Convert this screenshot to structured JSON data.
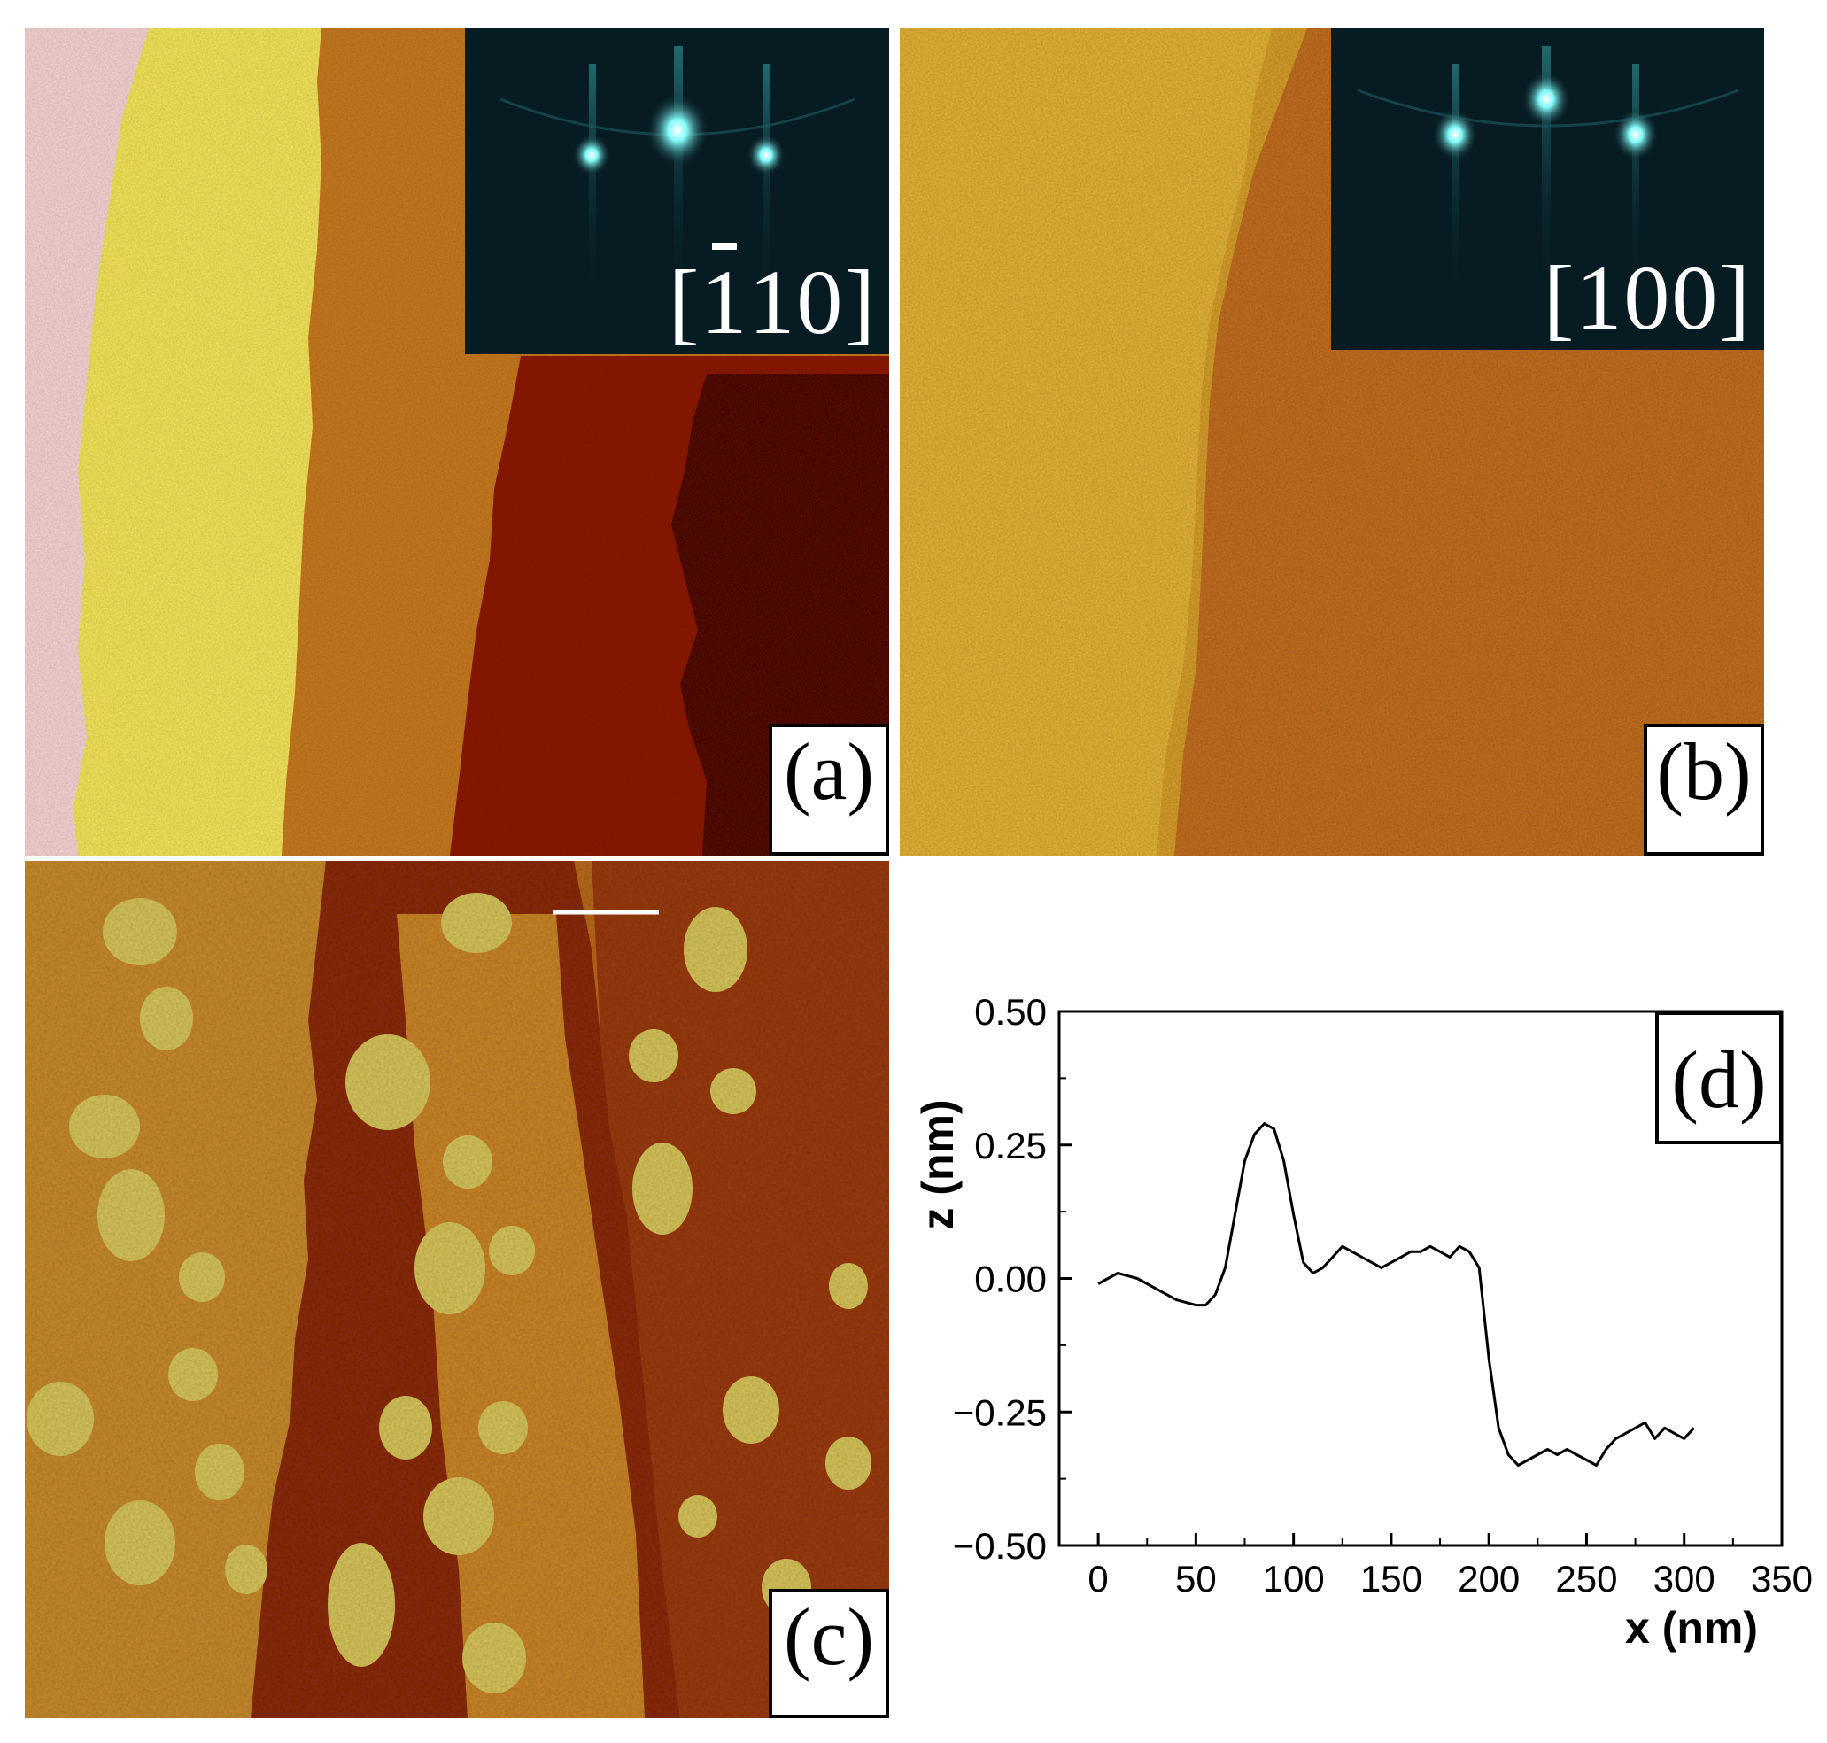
{
  "figure": {
    "panels": [
      {
        "id": "a",
        "label": "(a)",
        "inset_direction": "[110]",
        "inset_overbar_digit": "1"
      },
      {
        "id": "b",
        "label": "(b)",
        "inset_direction": "[100]"
      },
      {
        "id": "c",
        "label": "(c)"
      },
      {
        "id": "d",
        "label": "(d)"
      }
    ],
    "colors": {
      "afm_light": "#f5e85a",
      "afm_mid": "#c87a1a",
      "afm_dark": "#7a0f00",
      "afm_darkest": "#4a0500",
      "substrate_edge": "#f9d5d5",
      "rheed_spot": "#5cf0f0",
      "rheed_background": "#04141a"
    }
  },
  "chart_data": {
    "type": "line",
    "panel": "(d)",
    "xlabel": "x (nm)",
    "ylabel": "z (nm)",
    "xlim": [
      -20,
      350
    ],
    "ylim": [
      -0.5,
      0.5
    ],
    "xticks": [
      0,
      50,
      100,
      150,
      200,
      250,
      300,
      350
    ],
    "yticks": [
      -0.5,
      -0.25,
      0.0,
      0.25,
      0.5
    ],
    "ytick_labels": [
      "−0.50",
      "−0.25",
      "0.00",
      "0.25",
      "0.50"
    ],
    "grid": false,
    "series": [
      {
        "x": [
          0,
          10,
          20,
          30,
          40,
          50,
          55,
          60,
          65,
          70,
          75,
          80,
          85,
          90,
          95,
          100,
          105,
          110,
          115,
          120,
          125,
          130,
          135,
          140,
          145,
          150,
          155,
          160,
          165,
          170,
          175,
          180,
          185,
          190,
          195,
          200,
          205,
          210,
          215,
          220,
          225,
          230,
          235,
          240,
          245,
          250,
          255,
          260,
          265,
          270,
          275,
          280,
          285,
          290,
          295,
          300,
          305
        ],
        "y": [
          -0.01,
          0.01,
          0.0,
          -0.02,
          -0.04,
          -0.05,
          -0.05,
          -0.03,
          0.02,
          0.12,
          0.22,
          0.27,
          0.29,
          0.28,
          0.22,
          0.12,
          0.03,
          0.01,
          0.02,
          0.04,
          0.06,
          0.05,
          0.04,
          0.03,
          0.02,
          0.03,
          0.04,
          0.05,
          0.05,
          0.06,
          0.05,
          0.04,
          0.06,
          0.05,
          0.02,
          -0.15,
          -0.28,
          -0.33,
          -0.35,
          -0.34,
          -0.33,
          -0.32,
          -0.33,
          -0.32,
          -0.33,
          -0.34,
          -0.35,
          -0.32,
          -0.3,
          -0.29,
          -0.28,
          -0.27,
          -0.3,
          -0.28,
          -0.29,
          -0.3,
          -0.28
        ]
      }
    ]
  }
}
